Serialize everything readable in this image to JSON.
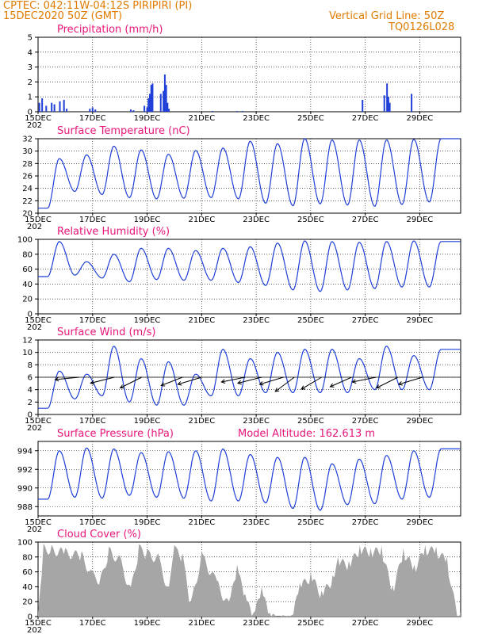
{
  "header": {
    "station": "CPTEC:   042:11W-04:12S   PIRIPIRI (PI)",
    "date": "15DEC2020 50Z (GMT)",
    "grid_note": "Vertical Grid Line: 50Z",
    "code": "TQ0126L028"
  },
  "x_ticks": [
    "15DEC",
    "17DEC",
    "19DEC",
    "21DEC",
    "23DEC",
    "25DEC",
    "27DEC",
    "29DEC"
  ],
  "year_fragment": "202",
  "colors": {
    "series": "#1f3fd8",
    "cloud": "#a6a6a6",
    "header": "#e07b00",
    "title": "#e8167a"
  },
  "chart_data": [
    {
      "id": "precip",
      "type": "bar",
      "title": "Precipitation (mm/h)",
      "ylim": [
        0,
        5
      ],
      "yticks": [
        0,
        1,
        2,
        3,
        4,
        5
      ],
      "x": [
        0.05,
        0.15,
        0.3,
        0.5,
        0.6,
        0.8,
        0.95,
        1.05,
        1.9,
        2.0,
        2.1,
        3.4,
        3.5,
        3.9,
        4.0,
        4.05,
        4.1,
        4.15,
        4.2,
        4.5,
        4.6,
        4.65,
        4.7,
        4.75,
        4.8,
        6.4,
        7.3,
        7.5,
        11.9,
        12.7,
        12.8,
        12.85,
        12.9,
        13.7
      ],
      "values": [
        0.6,
        0.9,
        0.4,
        0.6,
        0.5,
        0.7,
        0.8,
        0.2,
        0.2,
        0.3,
        0.15,
        0.15,
        0.1,
        0.4,
        0.3,
        0.9,
        1.2,
        1.8,
        1.9,
        1.2,
        1.4,
        2.5,
        1.8,
        0.6,
        0.2,
        0.05,
        0.05,
        0.05,
        0.8,
        1.1,
        1.9,
        1.0,
        0.6,
        1.2
      ]
    },
    {
      "id": "temp",
      "type": "line",
      "title": "Surface Temperature (nC)",
      "ylim": [
        20,
        32
      ],
      "yticks": [
        20,
        22,
        24,
        26,
        28,
        30,
        32
      ],
      "days": 15.5,
      "series": [
        {
          "min": [
            20.8,
            23.5,
            23.0,
            22.5,
            22.3,
            22.4,
            22.5,
            22.3,
            21.6,
            21.2,
            21.5,
            21.3,
            21.1,
            21.4,
            21.8
          ],
          "max": [
            28.8,
            29.4,
            30.8,
            30.2,
            29.5,
            30.1,
            30.5,
            31.6,
            31.2,
            32.0,
            31.8,
            31.8,
            31.8,
            31.9,
            32.0
          ]
        }
      ]
    },
    {
      "id": "rh",
      "type": "line",
      "title": "Relative Humidity (%)",
      "ylim": [
        0,
        100
      ],
      "yticks": [
        0,
        20,
        40,
        60,
        80,
        100
      ],
      "days": 15.5,
      "series": [
        {
          "min": [
            50,
            52,
            48,
            43,
            46,
            45,
            45,
            42,
            38,
            32,
            30,
            32,
            34,
            36,
            36
          ],
          "max": [
            97,
            70,
            80,
            88,
            88,
            85,
            88,
            90,
            95,
            98,
            97,
            96,
            97,
            98,
            97
          ]
        }
      ]
    },
    {
      "id": "wind",
      "type": "line",
      "title": "Surface Wind (m/s)",
      "ylim": [
        0,
        12
      ],
      "yticks": [
        0,
        2,
        4,
        6,
        8,
        10,
        12
      ],
      "days": 15.5,
      "series": [
        {
          "min": [
            1.0,
            2.5,
            3.0,
            2.0,
            1.5,
            1.5,
            3.0,
            3.0,
            3.5,
            3.5,
            3.5,
            3.5,
            4.0,
            4.0,
            4.0
          ],
          "max": [
            7.0,
            6.5,
            11.0,
            9.0,
            8.5,
            6.5,
            10.5,
            9.0,
            10.0,
            10.5,
            10.5,
            9.0,
            11.0,
            9.5,
            10.5
          ]
        }
      ],
      "arrows": [
        {
          "day": 1.5,
          "u": -1,
          "v": 0.1
        },
        {
          "day": 2.8,
          "u": -1,
          "v": 0.25
        },
        {
          "day": 3.8,
          "u": -0.9,
          "v": 0.45
        },
        {
          "day": 5.3,
          "u": -0.9,
          "v": 0.35
        },
        {
          "day": 6.0,
          "u": -1,
          "v": 0.3
        },
        {
          "day": 7.6,
          "u": -1,
          "v": 0.2
        },
        {
          "day": 8.2,
          "u": -1,
          "v": 0.25
        },
        {
          "day": 9.0,
          "u": -1,
          "v": 0.3
        },
        {
          "day": 9.4,
          "u": -0.8,
          "v": 0.6
        },
        {
          "day": 10.4,
          "u": -0.85,
          "v": 0.5
        },
        {
          "day": 11.5,
          "u": -0.9,
          "v": 0.4
        },
        {
          "day": 12.4,
          "u": -1,
          "v": 0.2
        },
        {
          "day": 13.2,
          "u": -0.9,
          "v": 0.45
        },
        {
          "day": 14.1,
          "u": -1,
          "v": 0.3
        }
      ]
    },
    {
      "id": "pres",
      "type": "line",
      "title": "Surface Pressure (hPa)",
      "annotation": "Model Altitude: 162.613 m",
      "ylim": [
        987,
        995
      ],
      "yticks": [
        988,
        990,
        992,
        994
      ],
      "days": 15.5,
      "series": [
        {
          "min": [
            988.8,
            989.0,
            988.9,
            989.2,
            989.0,
            988.9,
            988.6,
            988.6,
            988.4,
            987.8,
            987.6,
            988.2,
            988.3,
            988.8,
            989.0
          ],
          "max": [
            994.0,
            994.3,
            994.2,
            993.8,
            993.9,
            994.0,
            994.2,
            993.6,
            993.3,
            993.3,
            992.6,
            993.1,
            993.5,
            994.0,
            994.2
          ]
        }
      ]
    },
    {
      "id": "cloud",
      "type": "area",
      "title": "Cloud Cover (%)",
      "ylim": [
        0,
        100
      ],
      "yticks": [
        0,
        20,
        40,
        60,
        80,
        100
      ],
      "x": [
        0,
        0.2,
        0.5,
        1.0,
        1.6,
        2.0,
        2.3,
        2.6,
        3.0,
        3.4,
        3.7,
        4.0,
        4.4,
        4.8,
        5.0,
        5.3,
        5.6,
        6.0,
        6.5,
        7.0,
        7.3,
        7.6,
        7.9,
        8.2,
        8.5,
        9.0,
        9.3,
        9.6,
        10.0,
        10.4,
        10.8,
        11.0,
        11.4,
        11.8,
        12.2,
        12.6,
        13.0,
        13.4,
        13.8,
        14.2,
        14.6,
        15.0,
        15.3,
        15.5
      ],
      "values": [
        5,
        98,
        96,
        92,
        88,
        60,
        55,
        94,
        82,
        40,
        97,
        90,
        85,
        40,
        96,
        85,
        20,
        88,
        55,
        20,
        70,
        30,
        5,
        40,
        5,
        2,
        2,
        45,
        60,
        35,
        55,
        80,
        75,
        96,
        92,
        95,
        40,
        92,
        70,
        96,
        94,
        80,
        20,
        5
      ]
    }
  ]
}
